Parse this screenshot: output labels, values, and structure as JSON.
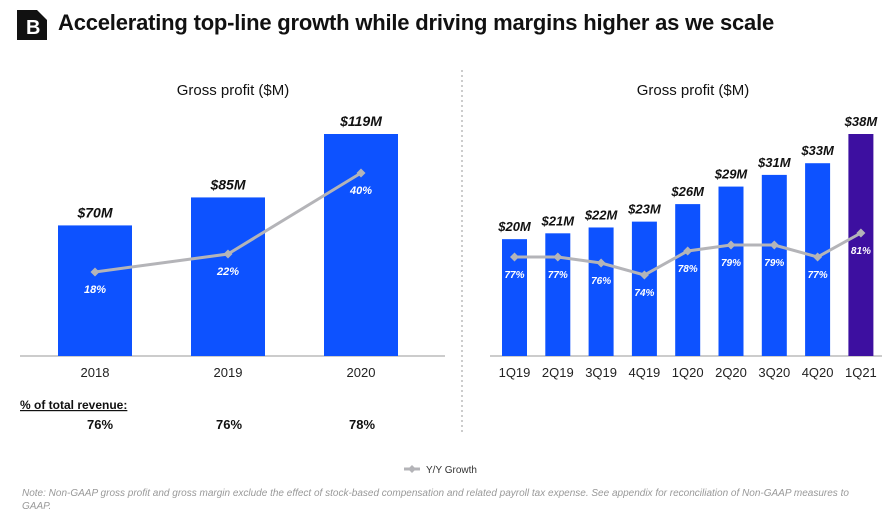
{
  "header": {
    "title": "Accelerating top-line growth while driving margins higher as we scale",
    "logo_letter": "B"
  },
  "colors": {
    "bar": "#0d52ff",
    "bar_highlight": "#3d0fa0",
    "line": "#b4b4b8",
    "text": "#111111"
  },
  "chart_data": [
    {
      "type": "bar",
      "title": "Gross profit ($M)",
      "categories": [
        "2018",
        "2019",
        "2020"
      ],
      "values": [
        70,
        85,
        119
      ],
      "data_labels": [
        "$70M",
        "$85M",
        "$119M"
      ],
      "line_series": {
        "name": "Y/Y Growth",
        "values": [
          18,
          22,
          40
        ],
        "labels": [
          "18%",
          "22%",
          "40%"
        ]
      },
      "ylim": [
        0,
        119
      ],
      "grid": false
    },
    {
      "type": "bar",
      "title": "Gross profit ($M)",
      "categories": [
        "1Q19",
        "2Q19",
        "3Q19",
        "4Q19",
        "1Q20",
        "2Q20",
        "3Q20",
        "4Q20",
        "1Q21"
      ],
      "values": [
        20,
        21,
        22,
        23,
        26,
        29,
        31,
        33,
        38
      ],
      "data_labels": [
        "$20M",
        "$21M",
        "$22M",
        "$23M",
        "$26M",
        "$29M",
        "$31M",
        "$33M",
        "$38M"
      ],
      "highlighted_category": "1Q21",
      "line_series": {
        "name": "Y/Y Growth",
        "values": [
          77,
          77,
          76,
          74,
          78,
          79,
          79,
          77,
          81
        ],
        "labels": [
          "77%",
          "77%",
          "76%",
          "74%",
          "78%",
          "79%",
          "79%",
          "77%",
          "81%"
        ]
      },
      "ylim": [
        0,
        38
      ],
      "grid": false
    }
  ],
  "revenue_share": {
    "label": "% of total revenue:",
    "values": [
      "76%",
      "76%",
      "78%"
    ]
  },
  "legend": {
    "label": "Y/Y Growth",
    "position": "bottom"
  },
  "footnote": "Note: Non-GAAP gross profit and gross margin exclude the effect of stock-based compensation and related payroll tax expense. See appendix for reconciliation of Non-GAAP measures to GAAP."
}
